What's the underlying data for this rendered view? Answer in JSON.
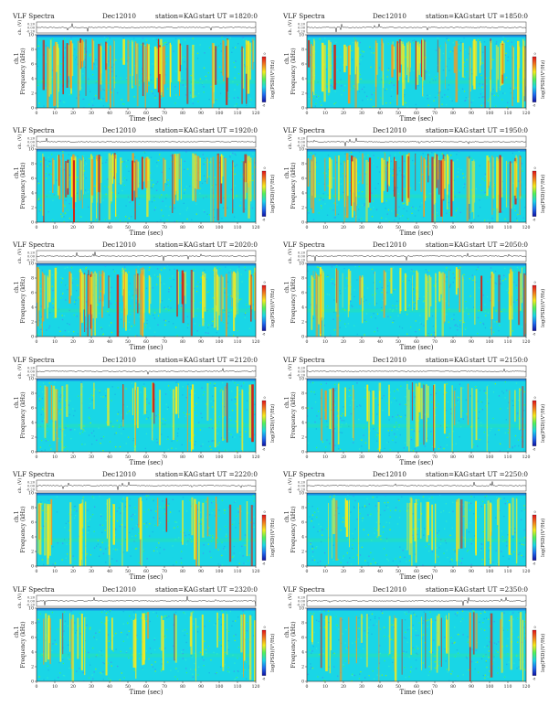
{
  "page": {
    "background": "#ffffff"
  },
  "colors": {
    "background": "#19d6e6",
    "speckle": [
      "#19d6e6",
      "#2ee6cc",
      "#1ab8e6",
      "#3aa0f0",
      "#37f07a",
      "#79ef3b"
    ],
    "streak_yellow": "#f5ea1c",
    "streak_orange": "#f39a22",
    "streak_red": "#d32414",
    "top_band": "#1a8fe6",
    "colorbar": [
      "#e0101a",
      "#f07a1e",
      "#f5ea1c",
      "#50f05a",
      "#19d6e6",
      "#1e6cf0",
      "#1010a0"
    ]
  },
  "chart_data": [
    {
      "type": "heatmap",
      "title": "VLF Spectra",
      "date": "Dec12010",
      "station": "station=KAG",
      "start": "start UT =1820:0",
      "top_ylabel": "ch. (V)",
      "top_ticks": [
        "0.20",
        "0.00",
        "-0.20"
      ],
      "ylabel_ch": "ch.1",
      "ylabel": "Frequency (kHz)",
      "yticks": [
        "10",
        "8",
        "6",
        "4",
        "2",
        "0"
      ],
      "xlabel": "Time (sec)",
      "xticks": [
        "0",
        "10",
        "20",
        "30",
        "40",
        "50",
        "60",
        "70",
        "80",
        "90",
        "100",
        "110",
        "120"
      ],
      "xlim": [
        0,
        120
      ],
      "ylim": [
        0,
        10
      ],
      "colorbar_label": "log(PSD)(V²/Hz)",
      "activity": "high"
    },
    {
      "type": "heatmap",
      "title": "VLF Spectra",
      "date": "Dec12010",
      "station": "station=KAG",
      "start": "start UT =1850:0",
      "top_ylabel": "ch. (V)",
      "top_ticks": [
        "0.20",
        "0.00",
        "-0.20"
      ],
      "ylabel_ch": "ch.1",
      "ylabel": "Frequency (kHz)",
      "yticks": [
        "10",
        "8",
        "6",
        "4",
        "2",
        "0"
      ],
      "xlabel": "Time (sec)",
      "xticks": [
        "0",
        "10",
        "20",
        "30",
        "40",
        "50",
        "60",
        "70",
        "80",
        "90",
        "100",
        "110",
        "120"
      ],
      "xlim": [
        0,
        120
      ],
      "ylim": [
        0,
        10
      ],
      "colorbar_label": "log(PSD)(V²/Hz)",
      "activity": "high"
    },
    {
      "type": "heatmap",
      "title": "VLF Spectra",
      "date": "Dec12010",
      "station": "station=KAG",
      "start": "start UT =1920:0",
      "top_ylabel": "ch. (V)",
      "top_ticks": [
        "0.20",
        "0.00",
        "-0.20"
      ],
      "ylabel_ch": "ch.1",
      "ylabel": "Frequency (kHz)",
      "yticks": [
        "10",
        "8",
        "6",
        "4",
        "2",
        "0"
      ],
      "xlabel": "Time (sec)",
      "xticks": [
        "0",
        "10",
        "20",
        "30",
        "40",
        "50",
        "60",
        "70",
        "80",
        "90",
        "100",
        "110",
        "120"
      ],
      "xlim": [
        0,
        120
      ],
      "ylim": [
        0,
        10
      ],
      "colorbar_label": "log(PSD)(V²/Hz)",
      "activity": "high"
    },
    {
      "type": "heatmap",
      "title": "VLF Spectra",
      "date": "Dec12010",
      "station": "station=KAG",
      "start": "start UT =1950:0",
      "top_ylabel": "ch. (V)",
      "top_ticks": [
        "0.20",
        "0.00",
        "-0.20"
      ],
      "ylabel_ch": "ch.1",
      "ylabel": "Frequency (kHz)",
      "yticks": [
        "10",
        "8",
        "6",
        "4",
        "2",
        "0"
      ],
      "xlabel": "Time (sec)",
      "xticks": [
        "0",
        "10",
        "20",
        "30",
        "40",
        "50",
        "60",
        "70",
        "80",
        "90",
        "100",
        "110",
        "120"
      ],
      "xlim": [
        0,
        120
      ],
      "ylim": [
        0,
        10
      ],
      "colorbar_label": "log(PSD)(V²/Hz)",
      "activity": "high"
    },
    {
      "type": "heatmap",
      "title": "VLF Spectra",
      "date": "Dec12010",
      "station": "station=KAG",
      "start": "start UT =2020:0",
      "top_ylabel": "ch. (V)",
      "top_ticks": [
        "0.20",
        "0.00",
        "-0.20"
      ],
      "ylabel_ch": "ch.1",
      "ylabel": "Frequency (kHz)",
      "yticks": [
        "10",
        "8",
        "6",
        "4",
        "2",
        "0"
      ],
      "xlabel": "Time (sec)",
      "xticks": [
        "0",
        "10",
        "20",
        "30",
        "40",
        "50",
        "60",
        "70",
        "80",
        "90",
        "100",
        "110",
        "120"
      ],
      "xlim": [
        0,
        120
      ],
      "ylim": [
        0,
        10
      ],
      "colorbar_label": "log(PSD)(V²/Hz)",
      "activity": "high"
    },
    {
      "type": "heatmap",
      "title": "VLF Spectra",
      "date": "Dec12010",
      "station": "station=KAG",
      "start": "start UT =2050:0",
      "top_ylabel": "ch. (V)",
      "top_ticks": [
        "0.20",
        "0.00",
        "-0.20"
      ],
      "ylabel_ch": "ch.1",
      "ylabel": "Frequency (kHz)",
      "yticks": [
        "10",
        "8",
        "6",
        "4",
        "2",
        "0"
      ],
      "xlabel": "Time (sec)",
      "xticks": [
        "0",
        "10",
        "20",
        "30",
        "40",
        "50",
        "60",
        "70",
        "80",
        "90",
        "100",
        "110",
        "120"
      ],
      "xlim": [
        0,
        120
      ],
      "ylim": [
        0,
        10
      ],
      "colorbar_label": "log(PSD)(V²/Hz)",
      "activity": "medium"
    },
    {
      "type": "heatmap",
      "title": "VLF Spectra",
      "date": "Dec12010",
      "station": "station=KAG",
      "start": "start UT =2120:0",
      "top_ylabel": "ch. (V)",
      "top_ticks": [
        "0.20",
        "0.00",
        "-0.20"
      ],
      "ylabel_ch": "ch.1",
      "ylabel": "Frequency (kHz)",
      "yticks": [
        "10",
        "8",
        "6",
        "4",
        "2",
        "0"
      ],
      "xlabel": "Time (sec)",
      "xticks": [
        "0",
        "10",
        "20",
        "30",
        "40",
        "50",
        "60",
        "70",
        "80",
        "90",
        "100",
        "110",
        "120"
      ],
      "xlim": [
        0,
        120
      ],
      "ylim": [
        0,
        10
      ],
      "colorbar_label": "log(PSD)(V²/Hz)",
      "activity": "low"
    },
    {
      "type": "heatmap",
      "title": "VLF Spectra",
      "date": "Dec12010",
      "station": "station=KAG",
      "start": "start UT =2150:0",
      "top_ylabel": "ch. (V)",
      "top_ticks": [
        "0.20",
        "0.00",
        "-0.20"
      ],
      "ylabel_ch": "ch.1",
      "ylabel": "Frequency (kHz)",
      "yticks": [
        "10",
        "8",
        "6",
        "4",
        "2",
        "0"
      ],
      "xlabel": "Time (sec)",
      "xticks": [
        "0",
        "10",
        "20",
        "30",
        "40",
        "50",
        "60",
        "70",
        "80",
        "90",
        "100",
        "110",
        "120"
      ],
      "xlim": [
        0,
        120
      ],
      "ylim": [
        0,
        10
      ],
      "colorbar_label": "log(PSD)(V²/Hz)",
      "activity": "low"
    },
    {
      "type": "heatmap",
      "title": "VLF Spectra",
      "date": "Dec12010",
      "station": "station=KAG",
      "start": "start UT =2220:0",
      "top_ylabel": "ch. (V)",
      "top_ticks": [
        "0.20",
        "0.00",
        "-0.20"
      ],
      "ylabel_ch": "ch.1",
      "ylabel": "Frequency (kHz)",
      "yticks": [
        "10",
        "8",
        "6",
        "4",
        "2",
        "0"
      ],
      "xlabel": "Time (sec)",
      "xticks": [
        "0",
        "10",
        "20",
        "30",
        "40",
        "50",
        "60",
        "70",
        "80",
        "90",
        "100",
        "110",
        "120"
      ],
      "xlim": [
        0,
        120
      ],
      "ylim": [
        0,
        10
      ],
      "colorbar_label": "log(PSD)(V²/Hz)",
      "activity": "low"
    },
    {
      "type": "heatmap",
      "title": "VLF Spectra",
      "date": "Dec12010",
      "station": "station=KAG",
      "start": "start UT =2250:0",
      "top_ylabel": "ch. (V)",
      "top_ticks": [
        "0.20",
        "0.00",
        "-0.20"
      ],
      "ylabel_ch": "ch.1",
      "ylabel": "Frequency (kHz)",
      "yticks": [
        "10",
        "8",
        "6",
        "4",
        "2",
        "0"
      ],
      "xlabel": "Time (sec)",
      "xticks": [
        "0",
        "10",
        "20",
        "30",
        "40",
        "50",
        "60",
        "70",
        "80",
        "90",
        "100",
        "110",
        "120"
      ],
      "xlim": [
        0,
        120
      ],
      "ylim": [
        0,
        10
      ],
      "colorbar_label": "log(PSD)(V²/Hz)",
      "activity": "low"
    },
    {
      "type": "heatmap",
      "title": "VLF Spectra",
      "date": "Dec12010",
      "station": "station=KAG",
      "start": "start UT =2320:0",
      "top_ylabel": "ch. (V)",
      "top_ticks": [
        "0.20",
        "0.00",
        "-0.20"
      ],
      "ylabel_ch": "ch.1",
      "ylabel": "Frequency (kHz)",
      "yticks": [
        "10",
        "8",
        "6",
        "4",
        "2",
        "0"
      ],
      "xlabel": "Time (sec)",
      "xticks": [
        "0",
        "10",
        "20",
        "30",
        "40",
        "50",
        "60",
        "70",
        "80",
        "90",
        "100",
        "110",
        "120"
      ],
      "xlim": [
        0,
        120
      ],
      "ylim": [
        0,
        10
      ],
      "colorbar_label": "log(PSD)(V²/Hz)",
      "activity": "low"
    },
    {
      "type": "heatmap",
      "title": "VLF Spectra",
      "date": "Dec12010",
      "station": "station=KAG",
      "start": "start UT =2350:0",
      "top_ylabel": "ch. (V)",
      "top_ticks": [
        "0.20",
        "0.00",
        "-0.20"
      ],
      "ylabel_ch": "ch.1",
      "ylabel": "Frequency (kHz)",
      "yticks": [
        "10",
        "8",
        "6",
        "4",
        "2",
        "0"
      ],
      "xlabel": "Time (sec)",
      "xticks": [
        "0",
        "10",
        "20",
        "30",
        "40",
        "50",
        "60",
        "70",
        "80",
        "90",
        "100",
        "110",
        "120"
      ],
      "xlim": [
        0,
        120
      ],
      "ylim": [
        0,
        10
      ],
      "colorbar_label": "log(PSD)(V²/Hz)",
      "activity": "low"
    }
  ]
}
